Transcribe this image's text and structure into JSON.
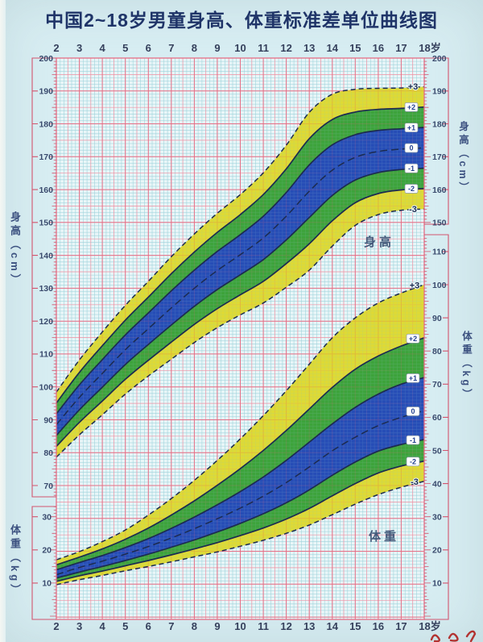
{
  "title": "中国2~18岁男童身高、体重标准差单位曲线图",
  "axis": {
    "age_labels": [
      "2",
      "3",
      "4",
      "5",
      "6",
      "7",
      "8",
      "9",
      "10",
      "11",
      "12",
      "13",
      "14",
      "15",
      "16",
      "17",
      "18岁"
    ],
    "left_height": {
      "title": "身高（cm）",
      "ticks": [
        200,
        190,
        180,
        170,
        160,
        150,
        140,
        130,
        120,
        110,
        100,
        90,
        80,
        70
      ]
    },
    "left_weight": {
      "title": "体重（kg）",
      "ticks": [
        30,
        20,
        10
      ]
    },
    "right_height": {
      "title": "身高（cm）",
      "ticks": [
        200,
        190,
        180,
        170,
        160,
        150
      ]
    },
    "right_weight": {
      "title": "体重（kg）",
      "ticks": [
        110,
        100,
        90,
        80,
        70,
        60,
        50,
        40,
        30,
        20,
        10
      ]
    }
  },
  "inner_labels": {
    "height": "身高",
    "weight": "体重"
  },
  "chart_data": [
    {
      "type": "area",
      "name": "height-for-age SD curves, boys 2-18y",
      "unit": "cm",
      "ylabel": "身高（cm）",
      "yrange": [
        70,
        200
      ],
      "x_ages": [
        2,
        3,
        4,
        5,
        6,
        7,
        8,
        9,
        10,
        11,
        12,
        13,
        14,
        15,
        16,
        17,
        18
      ],
      "series": [
        {
          "name": "+3",
          "style": "dashed",
          "values": [
            98.4,
            108.2,
            116.7,
            124.8,
            132.1,
            139.6,
            146.5,
            152.8,
            158.5,
            165.1,
            173.5,
            183.5,
            189.0,
            190.5,
            190.8,
            190.9,
            191.3
          ]
        },
        {
          "name": "+2",
          "style": "solid",
          "values": [
            95.1,
            104.4,
            112.5,
            120.3,
            127.3,
            134.4,
            141.0,
            147.0,
            152.4,
            158.5,
            166.3,
            175.5,
            181.3,
            183.6,
            184.4,
            184.7,
            185.1
          ]
        },
        {
          "name": "+1",
          "style": "solid",
          "values": [
            91.8,
            100.6,
            108.3,
            115.8,
            122.5,
            129.2,
            135.5,
            141.2,
            146.3,
            151.9,
            159.1,
            167.5,
            173.6,
            176.7,
            178.0,
            178.5,
            178.9
          ]
        },
        {
          "name": "0",
          "style": "dashed",
          "values": [
            88.5,
            96.8,
            104.1,
            111.3,
            117.7,
            124.0,
            130.0,
            135.4,
            140.2,
            145.3,
            151.9,
            159.5,
            165.9,
            169.8,
            171.6,
            172.3,
            172.7
          ]
        },
        {
          "name": "-1",
          "style": "solid",
          "values": [
            85.2,
            93.0,
            99.9,
            106.8,
            112.9,
            118.8,
            124.5,
            129.6,
            134.1,
            138.7,
            144.7,
            151.5,
            158.2,
            162.9,
            165.2,
            166.1,
            166.5
          ]
        },
        {
          "name": "-2",
          "style": "solid",
          "values": [
            81.9,
            89.2,
            95.7,
            102.3,
            108.1,
            113.6,
            119.0,
            123.8,
            128.0,
            132.1,
            137.5,
            143.5,
            150.5,
            156.0,
            158.8,
            159.9,
            160.3
          ]
        },
        {
          "name": "-3",
          "style": "dashed",
          "values": [
            78.6,
            85.4,
            91.5,
            97.8,
            103.3,
            108.4,
            113.5,
            118.0,
            121.9,
            125.5,
            130.3,
            135.5,
            142.8,
            149.1,
            152.4,
            153.7,
            154.1
          ]
        }
      ],
      "bands": [
        {
          "between": [
            "+3",
            "-3"
          ],
          "color_key": "band_outer"
        },
        {
          "between": [
            "+2",
            "-2"
          ],
          "color_key": "band_mid"
        },
        {
          "between": [
            "+1",
            "-1"
          ],
          "color_key": "band_inner"
        }
      ]
    },
    {
      "type": "area",
      "name": "weight-for-age SD curves, boys 2-18y",
      "unit": "kg",
      "ylabel": "体重（kg）",
      "yrange": [
        0,
        110
      ],
      "x_ages": [
        2,
        3,
        4,
        5,
        6,
        7,
        8,
        9,
        10,
        11,
        12,
        13,
        14,
        15,
        16,
        17,
        18
      ],
      "series": [
        {
          "name": "+3",
          "style": "dashed",
          "values": [
            17.0,
            19.5,
            22.5,
            26.0,
            30.5,
            35.5,
            41.0,
            47.0,
            53.5,
            60.5,
            68.0,
            76.0,
            84.0,
            90.0,
            94.5,
            97.5,
            100.0
          ]
        },
        {
          "name": "+2",
          "style": "solid",
          "values": [
            15.5,
            17.8,
            20.3,
            23.2,
            26.6,
            30.5,
            34.8,
            39.5,
            44.5,
            50.0,
            56.0,
            62.5,
            69.0,
            74.5,
            78.5,
            81.5,
            84.0
          ]
        },
        {
          "name": "+1",
          "style": "solid",
          "values": [
            14.0,
            16.2,
            18.3,
            20.7,
            23.4,
            26.5,
            29.9,
            33.6,
            37.6,
            42.0,
            47.0,
            52.5,
            58.0,
            63.0,
            67.0,
            70.0,
            72.0
          ]
        },
        {
          "name": "0",
          "style": "dashed",
          "values": [
            12.5,
            14.7,
            16.6,
            18.7,
            21.0,
            23.6,
            26.4,
            29.4,
            32.6,
            36.2,
            40.3,
            45.0,
            49.9,
            54.0,
            57.5,
            60.0,
            62.0
          ]
        },
        {
          "name": "-1",
          "style": "solid",
          "values": [
            11.5,
            13.3,
            15.0,
            16.8,
            18.7,
            20.8,
            23.0,
            25.4,
            28.0,
            30.9,
            34.2,
            38.1,
            42.5,
            46.5,
            49.8,
            51.8,
            53.3
          ]
        },
        {
          "name": "-2",
          "style": "solid",
          "values": [
            10.5,
            12.2,
            13.6,
            15.2,
            16.8,
            18.5,
            20.3,
            22.2,
            24.3,
            26.6,
            29.3,
            32.5,
            36.3,
            40.0,
            43.2,
            45.3,
            46.8
          ]
        },
        {
          "name": "-3",
          "style": "dashed",
          "values": [
            9.5,
            11.0,
            12.3,
            13.7,
            15.0,
            16.4,
            17.9,
            19.4,
            21.1,
            22.9,
            25.0,
            27.5,
            30.6,
            33.8,
            36.7,
            38.9,
            40.7
          ]
        }
      ],
      "bands": [
        {
          "between": [
            "+3",
            "-3"
          ],
          "color_key": "band_outer"
        },
        {
          "between": [
            "+2",
            "-2"
          ],
          "color_key": "band_mid"
        },
        {
          "between": [
            "+1",
            "-1"
          ],
          "color_key": "band_inner"
        }
      ]
    }
  ],
  "colors": {
    "paper": "#d7edf2",
    "plot_bg": "#e9f6f8",
    "grid_minor": "#9fd4db",
    "grid_medium": "#ef93a4",
    "grid_major": "#e56e85",
    "band_outer": "#ddd71f",
    "band_mid": "#2b9c3c",
    "band_inner": "#2444c4",
    "curve": "#1c2b50",
    "axis_frame": "#d2556e",
    "box_border": "#8896a8",
    "box_text": "#24418f",
    "title_text": "#1f3468",
    "tick_text": "#394a6d",
    "signature": "#b23230"
  }
}
